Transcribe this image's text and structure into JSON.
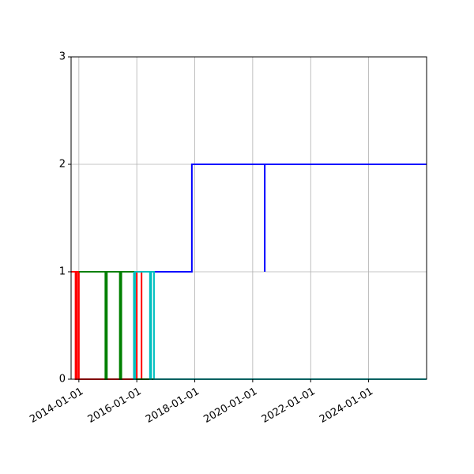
{
  "chart_data": {
    "type": "line",
    "step": true,
    "title": "",
    "xlabel": "",
    "ylabel": "",
    "x_axis_type": "date",
    "xlim": [
      "2013-09-25",
      "2026-01-01"
    ],
    "ylim": [
      0,
      3
    ],
    "grid": true,
    "legend": "none",
    "x_ticks": [
      "2014-01-01",
      "2016-01-01",
      "2018-01-01",
      "2020-01-01",
      "2022-01-01",
      "2024-01-01"
    ],
    "y_ticks": [
      "0",
      "1",
      "2",
      "3"
    ],
    "series": [
      {
        "color": "#ff0000",
        "points": [
          [
            "2013-09-25",
            1
          ],
          [
            "2013-11-20",
            1
          ],
          [
            "2013-11-20",
            0
          ],
          [
            "2013-12-10",
            0
          ],
          [
            "2013-12-10",
            1
          ],
          [
            "2014-01-01",
            1
          ],
          [
            "2014-01-01",
            0
          ],
          [
            "2016-01-01",
            0
          ],
          [
            "2016-01-01",
            1
          ],
          [
            "2016-03-01",
            1
          ],
          [
            "2016-03-01",
            0
          ],
          [
            "2026-01-01",
            0
          ]
        ]
      },
      {
        "color": "#008000",
        "points": [
          [
            "2014-01-01",
            1
          ],
          [
            "2014-12-01",
            1
          ],
          [
            "2014-12-01",
            0
          ],
          [
            "2014-12-20",
            0
          ],
          [
            "2014-12-20",
            1
          ],
          [
            "2015-06-01",
            1
          ],
          [
            "2015-06-01",
            0
          ],
          [
            "2015-06-20",
            0
          ],
          [
            "2015-06-20",
            1
          ],
          [
            "2015-12-01",
            1
          ],
          [
            "2015-12-01",
            0
          ],
          [
            "2026-01-01",
            0
          ]
        ]
      },
      {
        "color": "#00bfbf",
        "points": [
          [
            "2015-11-25",
            1
          ],
          [
            "2015-11-25",
            0
          ],
          [
            "2015-12-10",
            0
          ],
          [
            "2015-12-10",
            1
          ],
          [
            "2016-06-15",
            1
          ],
          [
            "2016-06-15",
            0
          ],
          [
            "2016-07-01",
            0
          ],
          [
            "2016-07-01",
            1
          ],
          [
            "2016-08-05",
            1
          ],
          [
            "2016-08-05",
            0
          ],
          [
            "2026-01-01",
            0
          ]
        ]
      },
      {
        "color": "#0000ff",
        "points": [
          [
            "2016-08-15",
            1
          ],
          [
            "2017-11-25",
            1
          ],
          [
            "2017-11-25",
            2
          ],
          [
            "2020-06-01",
            2
          ],
          [
            "2020-06-01",
            1
          ],
          [
            "2020-06-01",
            2
          ],
          [
            "2026-01-01",
            2
          ]
        ]
      }
    ]
  }
}
